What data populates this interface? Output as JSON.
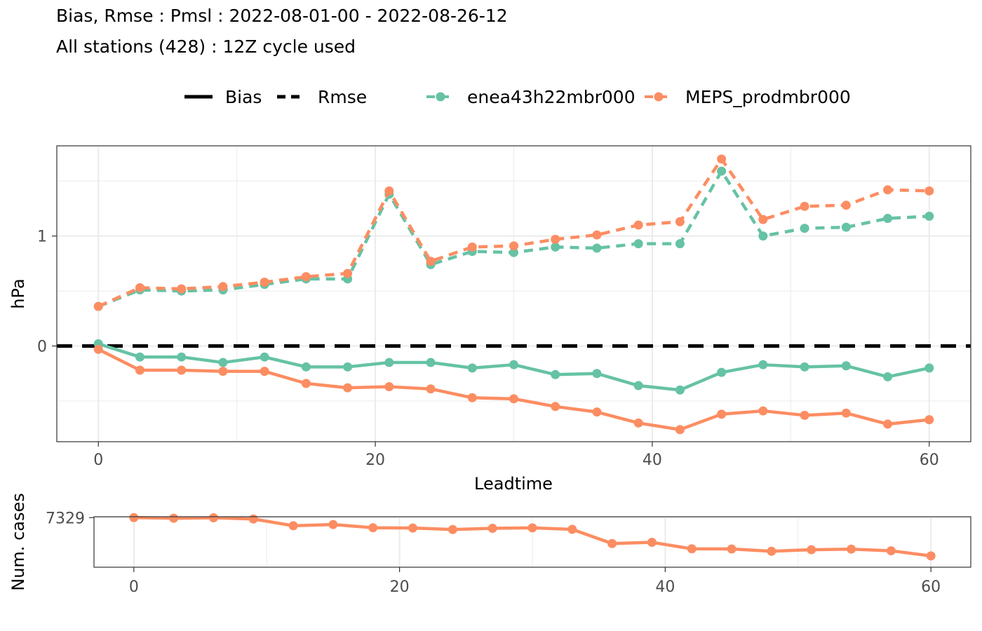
{
  "title": {
    "line1": "Bias, Rmse : Pmsl : 2022-08-01-00 - 2022-08-26-12",
    "line2": "All stations (428) : 12Z cycle used"
  },
  "legend": {
    "stat_bias": "Bias",
    "stat_rmse": "Rmse",
    "model_a": "enea43h22mbr000",
    "model_b": "MEPS_prodmbr000"
  },
  "colors": {
    "model_a": "#66c2a5",
    "model_b": "#fc8d62",
    "zero_line": "#000000",
    "grid": "#ebebeb",
    "panel_border": "#333333"
  },
  "chart_data": [
    {
      "type": "line",
      "xlabel": "Leadtime",
      "ylabel": "hPa",
      "xlim": [
        -3,
        63
      ],
      "ylim": [
        -0.87,
        1.82
      ],
      "x_ticks": [
        0,
        20,
        40,
        60
      ],
      "y_ticks": [
        0,
        1
      ],
      "grid": true,
      "legend_position": "top",
      "x": [
        0,
        3,
        6,
        9,
        12,
        15,
        18,
        21,
        24,
        27,
        30,
        33,
        36,
        39,
        42,
        45,
        48,
        51,
        54,
        57,
        60
      ],
      "series": [
        {
          "name": "enea43h22mbr000",
          "stat": "Rmse",
          "linestyle": "dashed",
          "values": [
            0.36,
            0.51,
            0.5,
            0.51,
            0.56,
            0.61,
            0.61,
            1.38,
            0.74,
            0.86,
            0.85,
            0.9,
            0.89,
            0.93,
            0.93,
            1.59,
            1.0,
            1.07,
            1.08,
            1.16,
            1.18
          ]
        },
        {
          "name": "MEPS_prodmbr000",
          "stat": "Rmse",
          "linestyle": "dashed",
          "values": [
            0.36,
            0.53,
            0.52,
            0.54,
            0.58,
            0.63,
            0.66,
            1.41,
            0.77,
            0.9,
            0.91,
            0.97,
            1.01,
            1.1,
            1.13,
            1.7,
            1.15,
            1.27,
            1.28,
            1.42,
            1.41
          ]
        },
        {
          "name": "enea43h22mbr000",
          "stat": "Bias",
          "linestyle": "solid",
          "values": [
            0.02,
            -0.1,
            -0.1,
            -0.15,
            -0.1,
            -0.19,
            -0.19,
            -0.15,
            -0.15,
            -0.2,
            -0.17,
            -0.26,
            -0.25,
            -0.36,
            -0.4,
            -0.24,
            -0.17,
            -0.19,
            -0.18,
            -0.28,
            -0.2
          ]
        },
        {
          "name": "MEPS_prodmbr000",
          "stat": "Bias",
          "linestyle": "solid",
          "values": [
            -0.03,
            -0.22,
            -0.22,
            -0.23,
            -0.23,
            -0.34,
            -0.38,
            -0.37,
            -0.39,
            -0.47,
            -0.48,
            -0.55,
            -0.6,
            -0.7,
            -0.76,
            -0.62,
            -0.59,
            -0.63,
            -0.61,
            -0.71,
            -0.67
          ]
        }
      ],
      "reference_line": {
        "y": 0,
        "linestyle": "dashed"
      }
    },
    {
      "type": "line",
      "xlabel": "",
      "ylabel": "Num. cases",
      "xlim": [
        -3,
        63
      ],
      "ylim": [
        7000,
        7335
      ],
      "x_ticks": [
        0,
        20,
        40,
        60
      ],
      "y_ticks": [
        7329
      ],
      "grid": true,
      "x": [
        0,
        3,
        6,
        9,
        12,
        15,
        18,
        21,
        24,
        27,
        30,
        33,
        36,
        39,
        42,
        45,
        48,
        51,
        54,
        57,
        60
      ],
      "series": [
        {
          "name": "MEPS_prodmbr000",
          "values": [
            7329,
            7325,
            7328,
            7320,
            7275,
            7283,
            7262,
            7260,
            7250,
            7258,
            7261,
            7251,
            7157,
            7165,
            7122,
            7121,
            7106,
            7116,
            7120,
            7109,
            7075
          ]
        }
      ]
    }
  ]
}
